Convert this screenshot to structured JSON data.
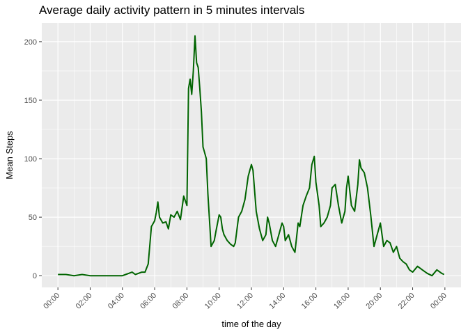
{
  "chart_data": {
    "type": "line",
    "title": "Average daily activity pattern in 5 minutes intervals",
    "xlabel": "time of the day",
    "ylabel": "Mean Steps",
    "x_tick_labels": [
      "00:00",
      "02:00",
      "04:00",
      "06:00",
      "08:00",
      "10:00",
      "12:00",
      "14:00",
      "16:00",
      "18:00",
      "20:00",
      "22:00",
      "00:00"
    ],
    "y_ticks": [
      0,
      50,
      100,
      150,
      200
    ],
    "xlim_hours": [
      -1.0,
      25.0
    ],
    "ylim": [
      -10,
      216
    ],
    "grid": true,
    "line_color": "#006400",
    "panel_background": "#EBEBEB",
    "series": [
      {
        "x_hours": [
          0.0,
          0.5,
          1.0,
          1.5,
          2.0,
          2.5,
          3.0,
          3.5,
          4.0,
          4.2,
          4.4,
          4.6,
          4.8,
          5.0,
          5.2,
          5.4,
          5.6,
          5.8,
          6.0,
          6.1,
          6.2,
          6.3,
          6.5,
          6.7,
          6.85,
          7.0,
          7.2,
          7.4,
          7.6,
          7.8,
          8.0,
          8.1,
          8.2,
          8.3,
          8.4,
          8.5,
          8.6,
          8.7,
          8.8,
          8.9,
          9.0,
          9.1,
          9.2,
          9.3,
          9.5,
          9.7,
          9.8,
          9.9,
          10.0,
          10.1,
          10.2,
          10.3,
          10.5,
          10.7,
          10.9,
          11.0,
          11.2,
          11.4,
          11.6,
          11.8,
          12.0,
          12.1,
          12.3,
          12.5,
          12.7,
          12.9,
          13.0,
          13.1,
          13.3,
          13.5,
          13.7,
          13.9,
          14.0,
          14.1,
          14.3,
          14.5,
          14.7,
          14.9,
          15.0,
          15.2,
          15.4,
          15.6,
          15.75,
          15.9,
          16.0,
          16.2,
          16.3,
          16.5,
          16.7,
          16.9,
          17.0,
          17.2,
          17.4,
          17.6,
          17.8,
          17.9,
          18.0,
          18.2,
          18.4,
          18.6,
          18.7,
          18.8,
          19.0,
          19.2,
          19.4,
          19.6,
          19.8,
          20.0,
          20.2,
          20.4,
          20.6,
          20.8,
          21.0,
          21.2,
          21.4,
          21.6,
          21.8,
          22.0,
          22.3,
          22.6,
          22.9,
          23.2,
          23.5,
          23.8,
          23.95
        ],
        "values": [
          1,
          1,
          0,
          1,
          0,
          0,
          0,
          0,
          0,
          1,
          2,
          3,
          1,
          2,
          3,
          3,
          10,
          42,
          47,
          54,
          63,
          50,
          45,
          46,
          40,
          52,
          50,
          55,
          48,
          68,
          60,
          160,
          168,
          155,
          175,
          205,
          182,
          178,
          160,
          140,
          110,
          105,
          100,
          70,
          25,
          30,
          38,
          45,
          52,
          50,
          40,
          35,
          30,
          27,
          25,
          28,
          50,
          55,
          65,
          85,
          95,
          90,
          55,
          40,
          30,
          35,
          50,
          45,
          30,
          25,
          35,
          45,
          42,
          30,
          35,
          25,
          20,
          45,
          42,
          60,
          68,
          75,
          95,
          102,
          80,
          60,
          42,
          45,
          50,
          60,
          75,
          78,
          60,
          45,
          55,
          75,
          85,
          60,
          55,
          78,
          99,
          92,
          88,
          75,
          52,
          25,
          35,
          45,
          25,
          30,
          28,
          20,
          25,
          15,
          12,
          10,
          5,
          3,
          8,
          5,
          2,
          0,
          5,
          2,
          1
        ]
      }
    ]
  }
}
